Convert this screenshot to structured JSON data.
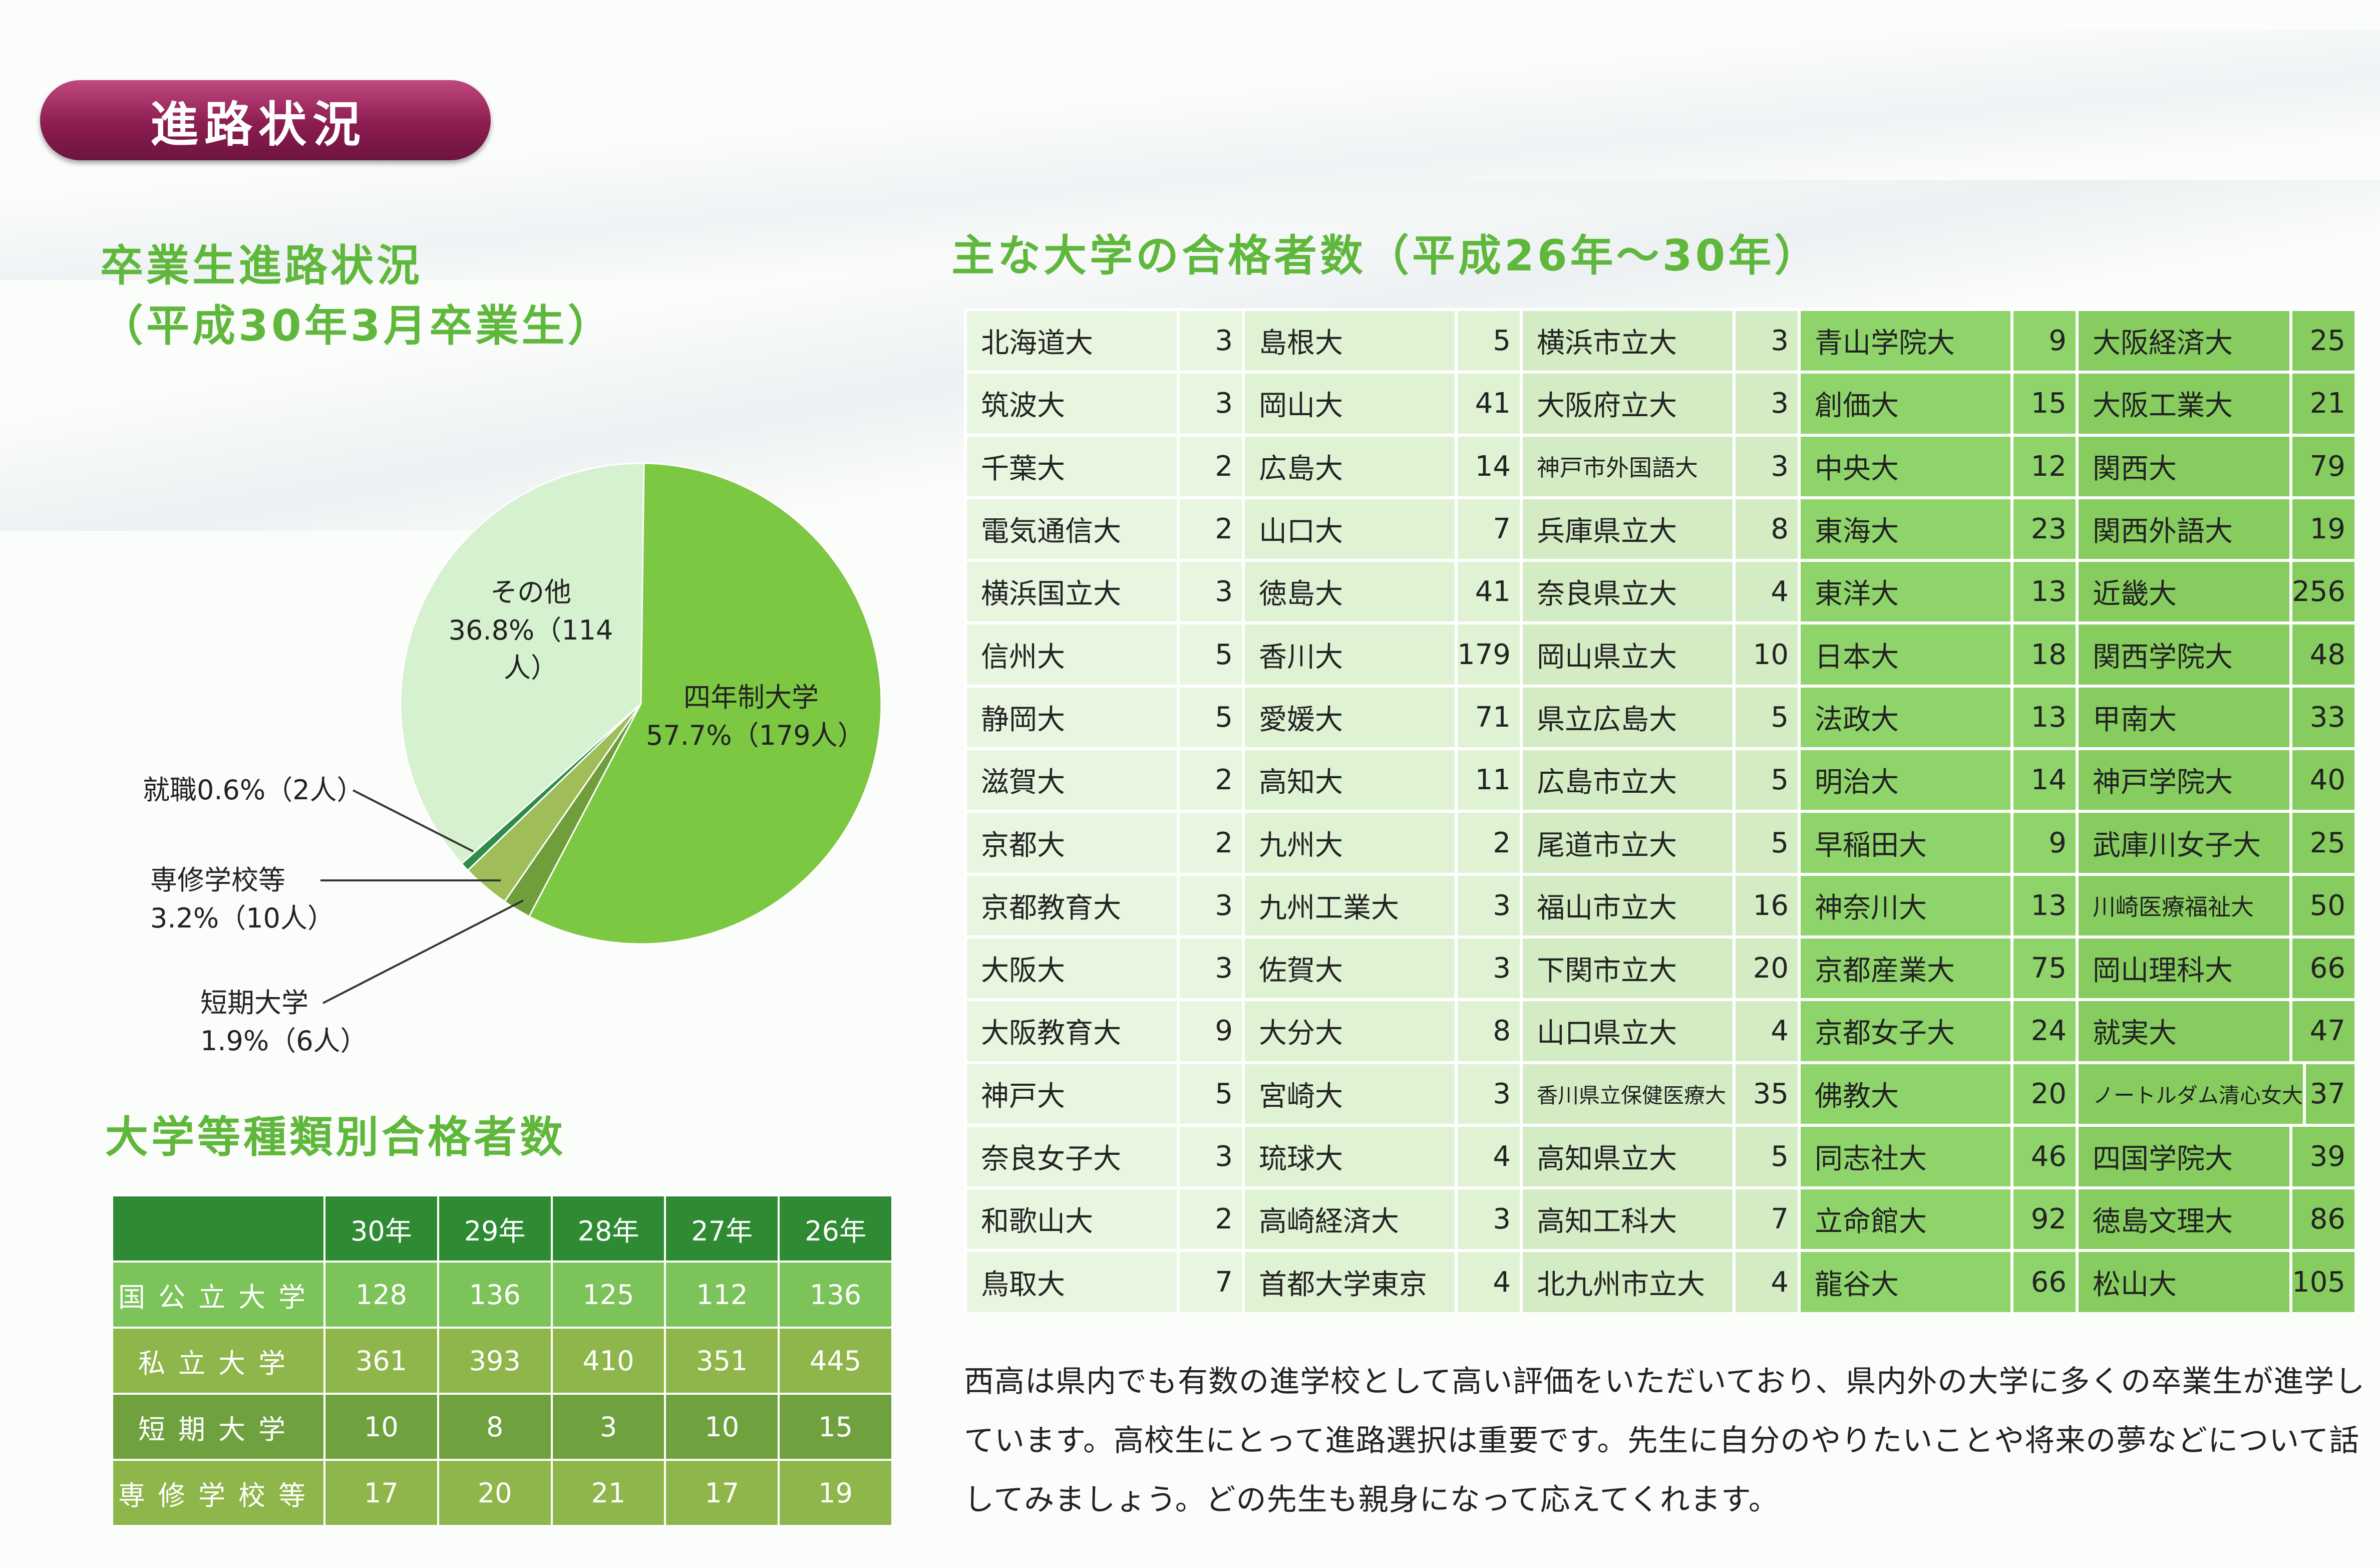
{
  "section_title": "進路状況",
  "grad_title_line1": "卒業生進路状況",
  "grad_title_line2": "（平成30年3月卒業生）",
  "type_title": "大学等種類別合格者数",
  "uni_title": "主な大学の合格者数（平成26年～30年）",
  "pie": {
    "slices": [
      {
        "label": "四年制大学",
        "value_text": "57.7%（179人）",
        "percent": 57.7,
        "color": "#7cc843"
      },
      {
        "label": "短期大学",
        "value_text": "1.9%（6人）",
        "percent": 1.9,
        "color": "#6f9e3a"
      },
      {
        "label": "専修学校等",
        "value_text": "3.2%（10人）",
        "percent": 3.2,
        "color": "#9fbe5a"
      },
      {
        "label": "就職",
        "value_text": "0.6%（2人）",
        "percent": 0.6,
        "color": "#2f8c4a"
      },
      {
        "label": "その他",
        "value_text": "36.8%（114人）",
        "percent": 36.8,
        "color": "#d6f1cf"
      }
    ],
    "label_shushoku": "就職0.6%（2人）",
    "label_senshu_1": "専修学校等",
    "label_senshu_2": "3.2%（10人）",
    "label_tanki_1": "短期大学",
    "label_tanki_2": "1.9%（6人）",
    "label_other_1": "その他",
    "label_other_2": "36.8%（114人）",
    "label_univ_1": "四年制大学",
    "label_univ_2": "57.7%（179人）"
  },
  "type_table": {
    "headers": [
      "",
      "30年",
      "29年",
      "28年",
      "27年",
      "26年"
    ],
    "rows": [
      {
        "label": "国公立大学",
        "values": [
          "128",
          "136",
          "125",
          "112",
          "136"
        ]
      },
      {
        "label": "私立大学",
        "values": [
          "361",
          "393",
          "410",
          "351",
          "445"
        ]
      },
      {
        "label": "短期大学",
        "values": [
          "10",
          "8",
          "3",
          "10",
          "15"
        ]
      },
      {
        "label": "専修学校等",
        "values": [
          "17",
          "20",
          "21",
          "17",
          "19"
        ]
      }
    ]
  },
  "uni_table": {
    "columns": [
      [
        [
          "北海道大",
          "3"
        ],
        [
          "筑波大",
          "3"
        ],
        [
          "千葉大",
          "2"
        ],
        [
          "電気通信大",
          "2"
        ],
        [
          "横浜国立大",
          "3"
        ],
        [
          "信州大",
          "5"
        ],
        [
          "静岡大",
          "5"
        ],
        [
          "滋賀大",
          "2"
        ],
        [
          "京都大",
          "2"
        ],
        [
          "京都教育大",
          "3"
        ],
        [
          "大阪大",
          "3"
        ],
        [
          "大阪教育大",
          "9"
        ],
        [
          "神戸大",
          "5"
        ],
        [
          "奈良女子大",
          "3"
        ],
        [
          "和歌山大",
          "2"
        ],
        [
          "鳥取大",
          "7"
        ]
      ],
      [
        [
          "島根大",
          "5"
        ],
        [
          "岡山大",
          "41"
        ],
        [
          "広島大",
          "14"
        ],
        [
          "山口大",
          "7"
        ],
        [
          "徳島大",
          "41"
        ],
        [
          "香川大",
          "179"
        ],
        [
          "愛媛大",
          "71"
        ],
        [
          "高知大",
          "11"
        ],
        [
          "九州大",
          "2"
        ],
        [
          "九州工業大",
          "3"
        ],
        [
          "佐賀大",
          "3"
        ],
        [
          "大分大",
          "8"
        ],
        [
          "宮崎大",
          "3"
        ],
        [
          "琉球大",
          "4"
        ],
        [
          "高崎経済大",
          "3"
        ],
        [
          "首都大学東京",
          "4"
        ]
      ],
      [
        [
          "横浜市立大",
          "3"
        ],
        [
          "大阪府立大",
          "3"
        ],
        [
          "神戸市外国語大",
          "3"
        ],
        [
          "兵庫県立大",
          "8"
        ],
        [
          "奈良県立大",
          "4"
        ],
        [
          "岡山県立大",
          "10"
        ],
        [
          "県立広島大",
          "5"
        ],
        [
          "広島市立大",
          "5"
        ],
        [
          "尾道市立大",
          "5"
        ],
        [
          "福山市立大",
          "16"
        ],
        [
          "下関市立大",
          "20"
        ],
        [
          "山口県立大",
          "4"
        ],
        [
          "香川県立保健医療大",
          "35"
        ],
        [
          "高知県立大",
          "5"
        ],
        [
          "高知工科大",
          "7"
        ],
        [
          "北九州市立大",
          "4"
        ]
      ],
      [
        [
          "青山学院大",
          "9"
        ],
        [
          "創価大",
          "15"
        ],
        [
          "中央大",
          "12"
        ],
        [
          "東海大",
          "23"
        ],
        [
          "東洋大",
          "13"
        ],
        [
          "日本大",
          "18"
        ],
        [
          "法政大",
          "13"
        ],
        [
          "明治大",
          "14"
        ],
        [
          "早稲田大",
          "9"
        ],
        [
          "神奈川大",
          "13"
        ],
        [
          "京都産業大",
          "75"
        ],
        [
          "京都女子大",
          "24"
        ],
        [
          "佛教大",
          "20"
        ],
        [
          "同志社大",
          "46"
        ],
        [
          "立命館大",
          "92"
        ],
        [
          "龍谷大",
          "66"
        ]
      ],
      [
        [
          "大阪経済大",
          "25"
        ],
        [
          "大阪工業大",
          "21"
        ],
        [
          "関西大",
          "79"
        ],
        [
          "関西外語大",
          "19"
        ],
        [
          "近畿大",
          "256"
        ],
        [
          "関西学院大",
          "48"
        ],
        [
          "甲南大",
          "33"
        ],
        [
          "神戸学院大",
          "40"
        ],
        [
          "武庫川女子大",
          "25"
        ],
        [
          "川崎医療福祉大",
          "50"
        ],
        [
          "岡山理科大",
          "66"
        ],
        [
          "就実大",
          "47"
        ],
        [
          "ノートルダム清心女大",
          "37"
        ],
        [
          "四国学院大",
          "39"
        ],
        [
          "徳島文理大",
          "86"
        ],
        [
          "松山大",
          "105"
        ]
      ]
    ]
  },
  "paragraph": "西高は県内でも有数の進学校として高い評価をいただいており、県内外の大学に多くの卒業生が進学しています。高校生にとって進路選択は重要です。先生に自分のやりたいことや将来の夢などについて話してみましょう。どの先生も親身になって応えてくれます。"
}
